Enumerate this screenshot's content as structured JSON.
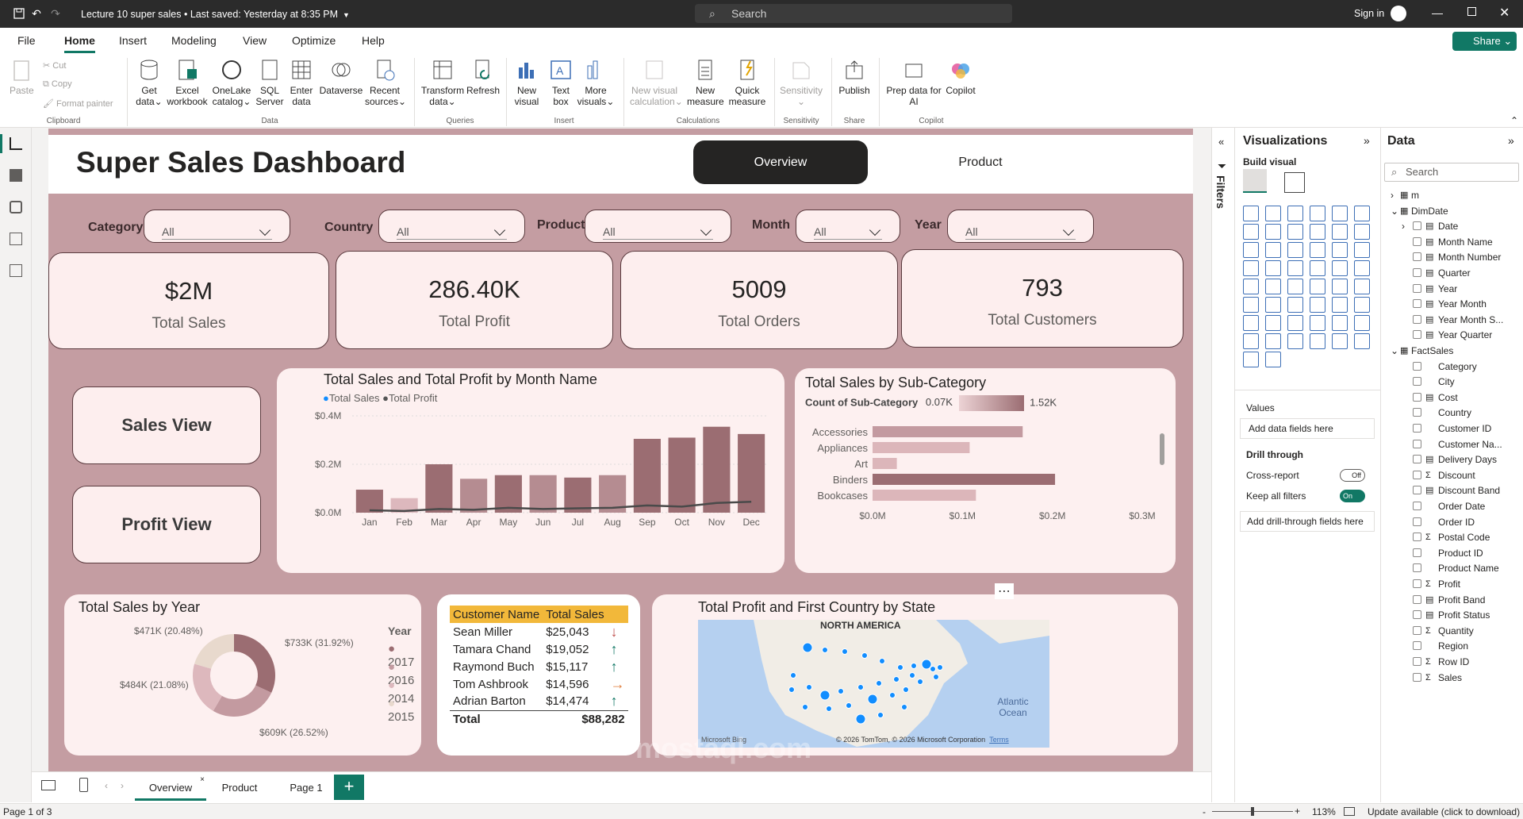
{
  "titlebar": {
    "file_title": "Lecture 10 super sales",
    "saved": "Last saved: Yesterday at 8:35 PM",
    "search": "Search",
    "signin": "Sign in"
  },
  "menu": [
    "File",
    "Home",
    "Insert",
    "Modeling",
    "View",
    "Optimize",
    "Help"
  ],
  "share": "Share",
  "ribbon": {
    "clipboard": {
      "paste": "Paste",
      "cut": "Cut",
      "copy": "Copy",
      "format_painter": "Format painter",
      "group": "Clipboard"
    },
    "data": {
      "get_data": "Get data",
      "excel": "Excel workbook",
      "onelake": "OneLake catalog",
      "sql": "SQL Server",
      "enter": "Enter data",
      "dataverse": "Dataverse",
      "recent": "Recent sources",
      "group": "Data"
    },
    "queries": {
      "transform": "Transform data",
      "refresh": "Refresh",
      "group": "Queries"
    },
    "insert": {
      "new_visual": "New visual",
      "text_box": "Text box",
      "more_visuals": "More visuals",
      "group": "Insert"
    },
    "calc": {
      "new_visual_calc": "New visual calculation",
      "new_measure": "New measure",
      "quick_measure": "Quick measure",
      "group": "Calculations"
    },
    "sensitivity": {
      "label": "Sensitivity",
      "group": "Sensitivity"
    },
    "share": {
      "publish": "Publish",
      "group": "Share"
    },
    "copilot": {
      "prep": "Prep data for AI",
      "copilot": "Copilot",
      "group": "Copilot"
    }
  },
  "report": {
    "title": "Super Sales Dashboard",
    "nav": {
      "overview": "Overview",
      "product": "Product"
    },
    "slicers": [
      {
        "label": "Category",
        "value": "All"
      },
      {
        "label": "Country",
        "value": "All"
      },
      {
        "label": "Product",
        "value": "All"
      },
      {
        "label": "Month",
        "value": "All"
      },
      {
        "label": "Year",
        "value": "All"
      }
    ],
    "kpis": [
      {
        "value": "$2M",
        "label": "Total Sales"
      },
      {
        "value": "286.40K",
        "label": "Total Profit"
      },
      {
        "value": "5009",
        "label": "Total Orders"
      },
      {
        "value": "793",
        "label": "Total Customers"
      }
    ],
    "buttons": {
      "sales_view": "Sales View",
      "profit_view": "Profit View"
    },
    "monthly_title": "Total Sales and Total Profit by Month Name",
    "subcat_title": "Total Sales by Sub-Category",
    "subcat_legend": {
      "label": "Count of Sub-Category",
      "min": "0.07K",
      "max": "1.52K"
    },
    "year_title": "Total Sales by Year",
    "year_legend_title": "Year",
    "map_title": "Total Profit and First Country by State",
    "map": {
      "region": "NORTH AMERICA",
      "ocean": "Atlantic Ocean",
      "bing": "Microsoft Bing",
      "copyright": "© 2026 TomTom, © 2026 Microsoft Corporation",
      "terms": "Terms"
    },
    "customer_table": {
      "headers": [
        "Customer Name",
        "Total Sales"
      ],
      "rows": [
        {
          "name": "Sean Miller",
          "sales": "$25,043",
          "trend": "down"
        },
        {
          "name": "Tamara Chand",
          "sales": "$19,052",
          "trend": "up"
        },
        {
          "name": "Raymond Buch",
          "sales": "$15,117",
          "trend": "up"
        },
        {
          "name": "Tom Ashbrook",
          "sales": "$14,596",
          "trend": "right"
        },
        {
          "name": "Adrian Barton",
          "sales": "$14,474",
          "trend": "up"
        }
      ],
      "total_label": "Total",
      "total_value": "$88,282"
    }
  },
  "chart_data": [
    {
      "type": "bar",
      "title": "Total Sales and Total Profit by Month Name",
      "categories": [
        "Jan",
        "Feb",
        "Mar",
        "Apr",
        "May",
        "Jun",
        "Jul",
        "Aug",
        "Sep",
        "Oct",
        "Nov",
        "Dec"
      ],
      "series": [
        {
          "name": "Total Sales",
          "values": [
            0.095,
            0.06,
            0.2,
            0.14,
            0.155,
            0.155,
            0.145,
            0.155,
            0.305,
            0.31,
            0.355,
            0.325
          ],
          "color": "#9b6d72"
        },
        {
          "name": "Total Profit",
          "values": [
            0.01,
            0.007,
            0.015,
            0.012,
            0.02,
            0.015,
            0.018,
            0.02,
            0.03,
            0.025,
            0.04,
            0.045
          ],
          "color": "#4a4a4a"
        }
      ],
      "yticks": [
        "$0.0M",
        "$0.2M",
        "$0.4M"
      ],
      "ylim": [
        0,
        0.4
      ]
    },
    {
      "type": "bar",
      "orientation": "horizontal",
      "title": "Total Sales by Sub-Category",
      "categories": [
        "Accessories",
        "Appliances",
        "Art",
        "Binders",
        "Bookcases"
      ],
      "values": [
        0.167,
        0.108,
        0.027,
        0.203,
        0.115
      ],
      "xticks": [
        "$0.0M",
        "$0.1M",
        "$0.2M",
        "$0.3M"
      ],
      "xlim": [
        0,
        0.3
      ]
    },
    {
      "type": "pie",
      "title": "Total Sales by Year",
      "labels": [
        "2017",
        "2016",
        "2014",
        "2015"
      ],
      "values": [
        733,
        609,
        484,
        471
      ],
      "data_labels": [
        "$733K (31.92%)",
        "$609K (26.52%)",
        "$484K (21.08%)",
        "$471K (20.48%)"
      ],
      "colors": [
        "#9b6d72",
        "#c39aa0",
        "#ddb8bd",
        "#e8d9cd"
      ]
    }
  ],
  "viz_pane": {
    "title": "Visualizations",
    "build_visual": "Build visual",
    "values": "Values",
    "add_fields": "Add data fields here",
    "drill": "Drill through",
    "cross_report": "Cross-report",
    "cross_state": "Off",
    "keep_filters": "Keep all filters",
    "keep_state": "On",
    "add_drill": "Add drill-through fields here"
  },
  "filters_label": "Filters",
  "data_pane": {
    "title": "Data",
    "search": "Search",
    "items": [
      {
        "label": "m",
        "level": 0,
        "kind": "table"
      },
      {
        "label": "DimDate",
        "level": 0,
        "kind": "table-open"
      },
      {
        "label": "Date",
        "level": 1,
        "kind": "hier"
      },
      {
        "label": "Month Name",
        "level": 1,
        "kind": "calc"
      },
      {
        "label": "Month Number",
        "level": 1,
        "kind": "calc"
      },
      {
        "label": "Quarter",
        "level": 1,
        "kind": "calc"
      },
      {
        "label": "Year",
        "level": 1,
        "kind": "calc"
      },
      {
        "label": "Year Month",
        "level": 1,
        "kind": "calc"
      },
      {
        "label": "Year Month S...",
        "level": 1,
        "kind": "calc"
      },
      {
        "label": "Year Quarter",
        "level": 1,
        "kind": "calc"
      },
      {
        "label": "FactSales",
        "level": 0,
        "kind": "table-open"
      },
      {
        "label": "Category",
        "level": 1,
        "kind": "field"
      },
      {
        "label": "City",
        "level": 1,
        "kind": "field"
      },
      {
        "label": "Cost",
        "level": 1,
        "kind": "calc"
      },
      {
        "label": "Country",
        "level": 1,
        "kind": "field"
      },
      {
        "label": "Customer ID",
        "level": 1,
        "kind": "field"
      },
      {
        "label": "Customer Na...",
        "level": 1,
        "kind": "field"
      },
      {
        "label": "Delivery Days",
        "level": 1,
        "kind": "calc"
      },
      {
        "label": "Discount",
        "level": 1,
        "kind": "sum"
      },
      {
        "label": "Discount Band",
        "level": 1,
        "kind": "calc"
      },
      {
        "label": "Order Date",
        "level": 1,
        "kind": "field"
      },
      {
        "label": "Order ID",
        "level": 1,
        "kind": "field"
      },
      {
        "label": "Postal Code",
        "level": 1,
        "kind": "sum"
      },
      {
        "label": "Product ID",
        "level": 1,
        "kind": "field"
      },
      {
        "label": "Product Name",
        "level": 1,
        "kind": "field"
      },
      {
        "label": "Profit",
        "level": 1,
        "kind": "sum"
      },
      {
        "label": "Profit Band",
        "level": 1,
        "kind": "calc"
      },
      {
        "label": "Profit Status",
        "level": 1,
        "kind": "calc"
      },
      {
        "label": "Quantity",
        "level": 1,
        "kind": "sum"
      },
      {
        "label": "Region",
        "level": 1,
        "kind": "field"
      },
      {
        "label": "Row ID",
        "level": 1,
        "kind": "sum"
      },
      {
        "label": "Sales",
        "level": 1,
        "kind": "sum"
      }
    ]
  },
  "page_tabs": [
    "Overview",
    "Product",
    "Page 1"
  ],
  "status": {
    "page": "Page 1 of 3",
    "zoom": "113%",
    "update": "Update available (click to download)"
  },
  "watermark": "mostaql.com"
}
